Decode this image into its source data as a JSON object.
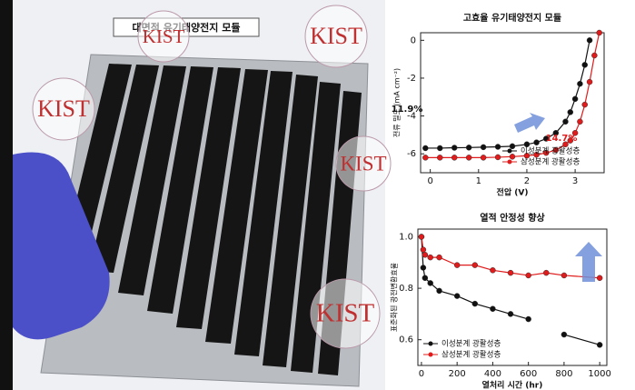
{
  "photo": {
    "label": "대면적 유기태양전지 모듈",
    "logo_text": "KIST"
  },
  "chart_data": [
    {
      "type": "line",
      "title": "고효율 유기태양전지 모듈",
      "x_label": "전압 (V)",
      "y_label": "전류 밀도 (mA cm⁻²)",
      "x": [
        -0.1,
        0.2,
        0.5,
        0.8,
        1.1,
        1.4,
        1.7,
        2.0,
        2.2,
        2.4,
        2.6,
        2.8,
        2.9,
        3.0,
        3.1,
        3.2,
        3.3,
        3.4,
        3.5
      ],
      "series": [
        {
          "name": "이성분계 광활성층",
          "color": "#111111",
          "values": [
            -5.7,
            -5.7,
            -5.68,
            -5.67,
            -5.65,
            -5.63,
            -5.6,
            -5.5,
            -5.4,
            -5.2,
            -4.9,
            -4.3,
            -3.8,
            -3.1,
            -2.3,
            -1.3,
            0.0,
            null,
            null
          ]
        },
        {
          "name": "삼성분계 광활성층",
          "color": "#e01b1b",
          "values": [
            -6.2,
            -6.2,
            -6.2,
            -6.2,
            -6.2,
            -6.18,
            -6.15,
            -6.1,
            -6.05,
            -5.95,
            -5.8,
            -5.5,
            -5.3,
            -4.9,
            -4.3,
            -3.4,
            -2.2,
            -0.8,
            0.4
          ]
        }
      ],
      "xlim": [
        -0.2,
        3.6
      ],
      "xticks": [
        0,
        1,
        2,
        3
      ],
      "ylim": [
        -7,
        0.4
      ],
      "yticks": [
        0,
        -2,
        -4,
        -6
      ],
      "legend": "lower right",
      "annotations": [
        {
          "text": "11.9%",
          "color": "#111111"
        },
        {
          "text": "14.7%",
          "color": "#e01b1b"
        }
      ]
    },
    {
      "type": "line",
      "title": "열적 안정성 향상",
      "x_label": "열처리 시간 (hr)",
      "y_label": "표준화된 광전변환효율",
      "x": [
        0,
        10,
        20,
        50,
        100,
        200,
        300,
        400,
        500,
        600,
        700,
        800,
        1000
      ],
      "series": [
        {
          "name": "이성분계 광활성층",
          "color": "#111111",
          "values": [
            1.0,
            0.88,
            0.84,
            0.82,
            0.79,
            0.77,
            0.74,
            0.72,
            0.7,
            0.68,
            null,
            0.62,
            0.58
          ]
        },
        {
          "name": "삼성분계 광활성층",
          "color": "#e01b1b",
          "values": [
            1.0,
            0.95,
            0.93,
            0.92,
            0.92,
            0.89,
            0.89,
            0.87,
            0.86,
            0.85,
            0.86,
            0.85,
            0.84
          ]
        }
      ],
      "xlim": [
        -20,
        1040
      ],
      "xticks": [
        0,
        200,
        400,
        600,
        800,
        1000
      ],
      "ylim": [
        0.5,
        1.03
      ],
      "yticks": [
        {
          "value": 0.6,
          "label": "0.6"
        },
        {
          "value": 0.8,
          "label": "0.8"
        },
        {
          "value": 1,
          "label": "1.0"
        }
      ],
      "legend": "lower left"
    }
  ]
}
